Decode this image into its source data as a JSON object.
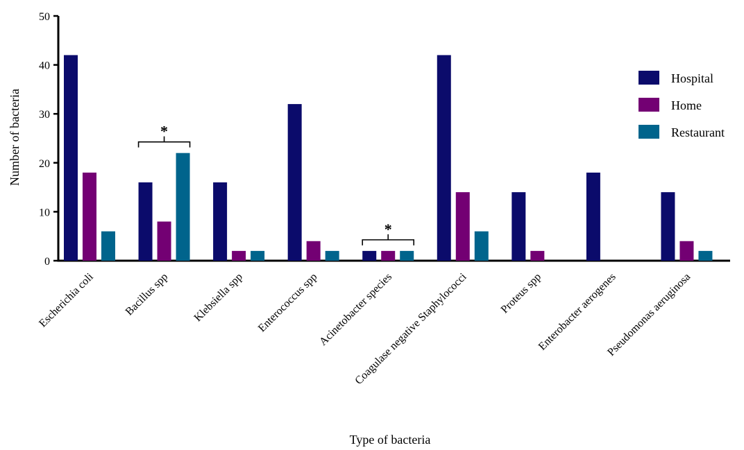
{
  "chart_data": {
    "type": "bar",
    "xlabel": "Type of bacteria",
    "ylabel": "Number of bacteria",
    "ylim": [
      0,
      50
    ],
    "yticks": [
      0,
      10,
      20,
      30,
      40,
      50
    ],
    "grid": false,
    "legend_position": "top-right",
    "categories": [
      "Escherichia coli",
      "Bacillus spp",
      "Klebsiella spp",
      "Enterococcus spp",
      "Acinetobacter species",
      "Coagulase negative Staphylococci",
      "Proteus spp",
      "Enterobacter aerogenes",
      "Pseudomonas aeruginosa"
    ],
    "series": [
      {
        "name": "Hospital",
        "color": "#0b0b6b",
        "values": [
          42,
          16,
          16,
          32,
          2,
          42,
          14,
          18,
          14
        ]
      },
      {
        "name": "Home",
        "color": "#730073",
        "values": [
          18,
          8,
          2,
          4,
          2,
          14,
          2,
          0,
          4
        ]
      },
      {
        "name": "Restaurant",
        "color": "#00648c",
        "values": [
          6,
          22,
          2,
          2,
          2,
          6,
          0,
          0,
          2
        ]
      }
    ],
    "annotations": [
      {
        "category": "Bacillus spp",
        "text": "*"
      },
      {
        "category": "Acinetobacter species",
        "text": "*"
      }
    ]
  }
}
